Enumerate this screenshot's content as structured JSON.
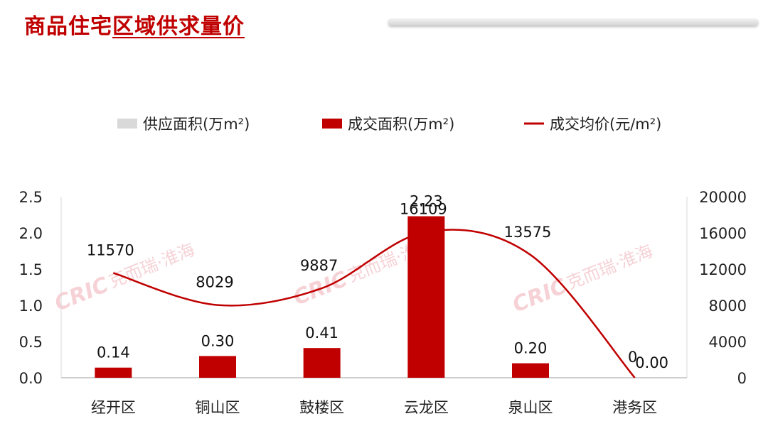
{
  "page": {
    "title_plain": "商品住宅",
    "title_underlined": "区域供求量价"
  },
  "watermark": {
    "logo": "CRIC",
    "text": "克而瑞·淮海"
  },
  "colors": {
    "supply": "#d9d9d9",
    "deal": "#c00000",
    "price_line": "#c00000",
    "title": "#c00000"
  },
  "chart_data": {
    "type": "bar",
    "categories": [
      "经开区",
      "铜山区",
      "鼓楼区",
      "云龙区",
      "泉山区",
      "港务区"
    ],
    "series": [
      {
        "name": "供应面积(万m²)",
        "type": "bar",
        "axis": "left",
        "values": [
          0,
          0,
          0,
          0,
          0,
          0
        ]
      },
      {
        "name": "成交面积(万m²)",
        "type": "bar",
        "axis": "left",
        "values": [
          0.14,
          0.3,
          0.41,
          2.23,
          0.2,
          0.0
        ],
        "labels": [
          "0.14",
          "0.30",
          "0.41",
          "2.23",
          "0.20",
          "0.00"
        ]
      },
      {
        "name": "成交均价(元/m²)",
        "type": "line",
        "axis": "right",
        "smooth": true,
        "values": [
          11570,
          8029,
          9887,
          16109,
          13575,
          0
        ],
        "labels": [
          "11570",
          "8029",
          "9887",
          "16109",
          "13575",
          "0"
        ]
      }
    ],
    "y_left": {
      "lim": [
        0,
        2.5
      ],
      "ticks": [
        "0.0",
        "0.5",
        "1.0",
        "1.5",
        "2.0",
        "2.5"
      ]
    },
    "y_right": {
      "lim": [
        0,
        20000
      ],
      "ticks": [
        "0",
        "4000",
        "8000",
        "12000",
        "16000",
        "20000"
      ]
    },
    "legend": {
      "position": "top"
    },
    "grid": false
  }
}
